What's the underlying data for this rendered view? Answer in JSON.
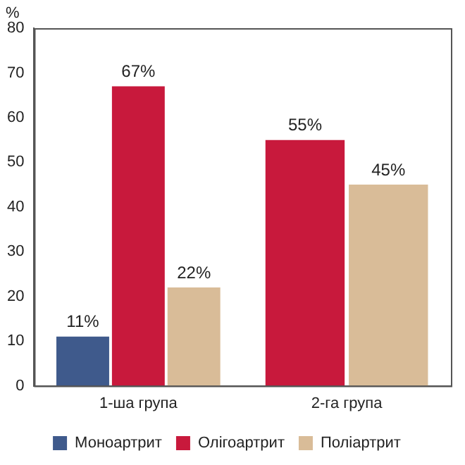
{
  "chart_data": {
    "type": "bar",
    "ylabel": "%",
    "categories": [
      "1-ша група",
      "2-га група"
    ],
    "series": [
      {
        "name": "Моноартрит",
        "color": "#3f5a8c",
        "values": [
          11,
          null
        ],
        "value_labels": [
          "11%",
          null
        ]
      },
      {
        "name": "Олігоартрит",
        "color": "#c8193c",
        "values": [
          67,
          55
        ],
        "value_labels": [
          "67%",
          "55%"
        ]
      },
      {
        "name": "Поліартрит",
        "color": "#d9bc98",
        "values": [
          22,
          45
        ],
        "value_labels": [
          "22%",
          "45%"
        ]
      }
    ],
    "ylim": [
      0,
      80
    ],
    "yticks": [
      0,
      10,
      20,
      30,
      40,
      50,
      60,
      70,
      80
    ],
    "grid": false,
    "legend": "bottom"
  }
}
